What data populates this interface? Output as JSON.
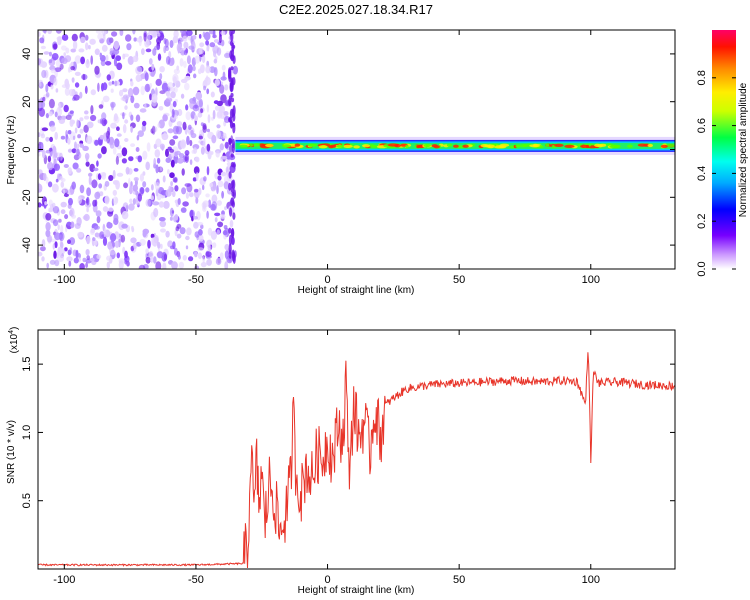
{
  "title": "C2E2.2025.027.18.34.R17",
  "chart_data": [
    {
      "type": "heatmap",
      "xlabel": "Height of straight line (km)",
      "ylabel": "Frequency (Hz)",
      "xlim": [
        -110,
        132
      ],
      "ylim": [
        -50,
        50
      ],
      "xticks": [
        -100,
        -50,
        0,
        50,
        100
      ],
      "yticks": [
        -40,
        -20,
        0,
        20,
        40
      ],
      "noise_region_x": [
        -110,
        -35
      ],
      "signal_band_center_hz": 1.5,
      "signal_band_x": [
        -35,
        132
      ],
      "colorbar": {
        "label": "Normalized spectral amplitude",
        "range": [
          0.0,
          1.0
        ],
        "ticks": [
          0.0,
          0.2,
          0.4,
          0.6,
          0.8
        ],
        "colors": [
          "#ffffff",
          "#7700ff",
          "#0000ff",
          "#00ffff",
          "#00ff00",
          "#ffff00",
          "#ff8800",
          "#ff0000",
          "#ff0066"
        ]
      }
    },
    {
      "type": "line",
      "xlabel": "Height of straight line (km)",
      "ylabel": "SNR (10 * v/v)",
      "y_multiplier": "(x10",
      "y_multiplier_exp": "4",
      "xlim": [
        -110,
        132
      ],
      "ylim": [
        0,
        17500
      ],
      "xticks": [
        -100,
        -50,
        0,
        50,
        100
      ],
      "yticks": [
        5000,
        10000,
        15000
      ],
      "ytick_labels": [
        "0.5",
        "1.0",
        "1.5"
      ],
      "color": "#e8352a",
      "x": [
        -110,
        -50,
        -32,
        -30,
        -29,
        -28,
        -27,
        -26,
        -25,
        -24,
        -22,
        -20,
        -18,
        -16,
        -14,
        -13,
        -12,
        -10,
        -8,
        -6,
        -4,
        -2,
        0,
        2,
        4,
        6,
        7,
        8,
        10,
        12,
        14,
        16,
        18,
        20,
        22,
        25,
        30,
        40,
        50,
        60,
        70,
        80,
        90,
        95,
        98,
        99,
        100,
        101,
        103,
        110,
        120,
        132
      ],
      "y": [
        300,
        300,
        400,
        2500,
        9500,
        3500,
        8000,
        4500,
        7500,
        3000,
        6500,
        5000,
        2500,
        4000,
        6500,
        11500,
        7000,
        5500,
        7500,
        6500,
        8500,
        8000,
        9500,
        8000,
        10500,
        9500,
        14500,
        7000,
        12000,
        9500,
        11000,
        8500,
        12000,
        9500,
        12000,
        12500,
        13200,
        13500,
        13600,
        13700,
        13800,
        13700,
        13800,
        13700,
        12000,
        16500,
        8000,
        14500,
        13600,
        13700,
        13500,
        13400
      ]
    }
  ]
}
